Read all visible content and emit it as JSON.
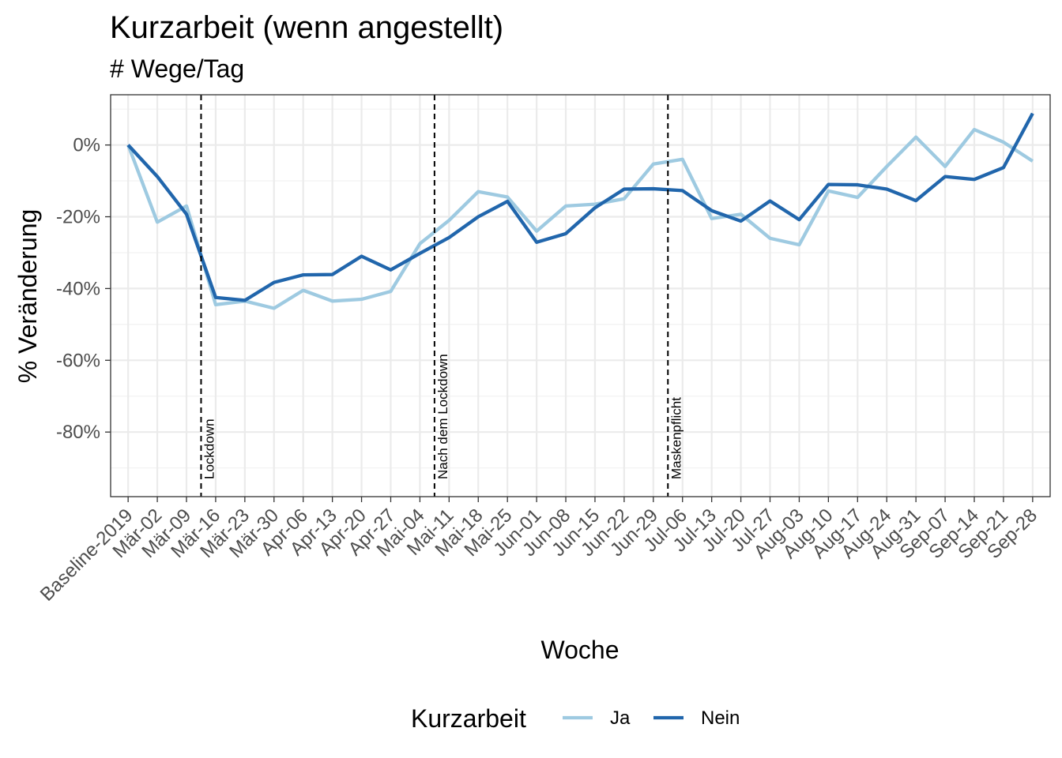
{
  "chart_data": {
    "type": "line",
    "title": "Kurzarbeit (wenn angestellt)",
    "subtitle": "# Wege/Tag",
    "xlabel": "Woche",
    "ylabel": "% Veränderung",
    "categories": [
      "Baseline-2019",
      "Mär-02",
      "Mär-09",
      "Mär-16",
      "Mär-23",
      "Mär-30",
      "Apr-06",
      "Apr-13",
      "Apr-20",
      "Apr-27",
      "Mai-04",
      "Mai-11",
      "Mai-18",
      "Mai-25",
      "Jun-01",
      "Jun-08",
      "Jun-15",
      "Jun-22",
      "Jun-29",
      "Jul-06",
      "Jul-13",
      "Jul-20",
      "Jul-27",
      "Aug-03",
      "Aug-10",
      "Aug-17",
      "Aug-24",
      "Aug-31",
      "Sep-07",
      "Sep-14",
      "Sep-21",
      "Sep-28"
    ],
    "series": [
      {
        "name": "Ja",
        "color": "#9ecae1",
        "values": [
          0,
          -21.5,
          -17,
          -44.5,
          -43.5,
          -45.5,
          -40.5,
          -43.5,
          -43,
          -40.8,
          -27.5,
          -21,
          -13,
          -14.5,
          -24,
          -17,
          -16.5,
          -15,
          -5.3,
          -4,
          -20.5,
          -19.3,
          -26,
          -27.8,
          -12.8,
          -14.6,
          -6,
          2.2,
          -6,
          4.3,
          0.8,
          -4.5
        ]
      },
      {
        "name": "Nein",
        "color": "#2166ac",
        "values": [
          0,
          -8.8,
          -19.3,
          -42.5,
          -43.3,
          -38.3,
          -36.2,
          -36.1,
          -31,
          -34.8,
          -30.2,
          -25.8,
          -20,
          -15.7,
          -27.1,
          -24.7,
          -17.5,
          -12.3,
          -12.2,
          -12.7,
          -18.3,
          -21.2,
          -15.6,
          -20.8,
          -11,
          -11.1,
          -12.3,
          -15.5,
          -8.8,
          -9.6,
          -6.3,
          8.8
        ]
      }
    ],
    "ylim": [
      -98,
      14
    ],
    "yticks": [
      0,
      -20,
      -40,
      -60,
      -80
    ],
    "ytick_labels": [
      "0%",
      "-20%",
      "-40%",
      "-60%",
      "-80%"
    ],
    "vlines": [
      {
        "x": 2.5,
        "label": "Lockdown"
      },
      {
        "x": 10.5,
        "label": "Nach dem Lockdown"
      },
      {
        "x": 18.5,
        "label": "Maskenpflicht"
      }
    ],
    "legend": {
      "title": "Kurzarbeit",
      "position": "bottom"
    },
    "grid": true
  }
}
